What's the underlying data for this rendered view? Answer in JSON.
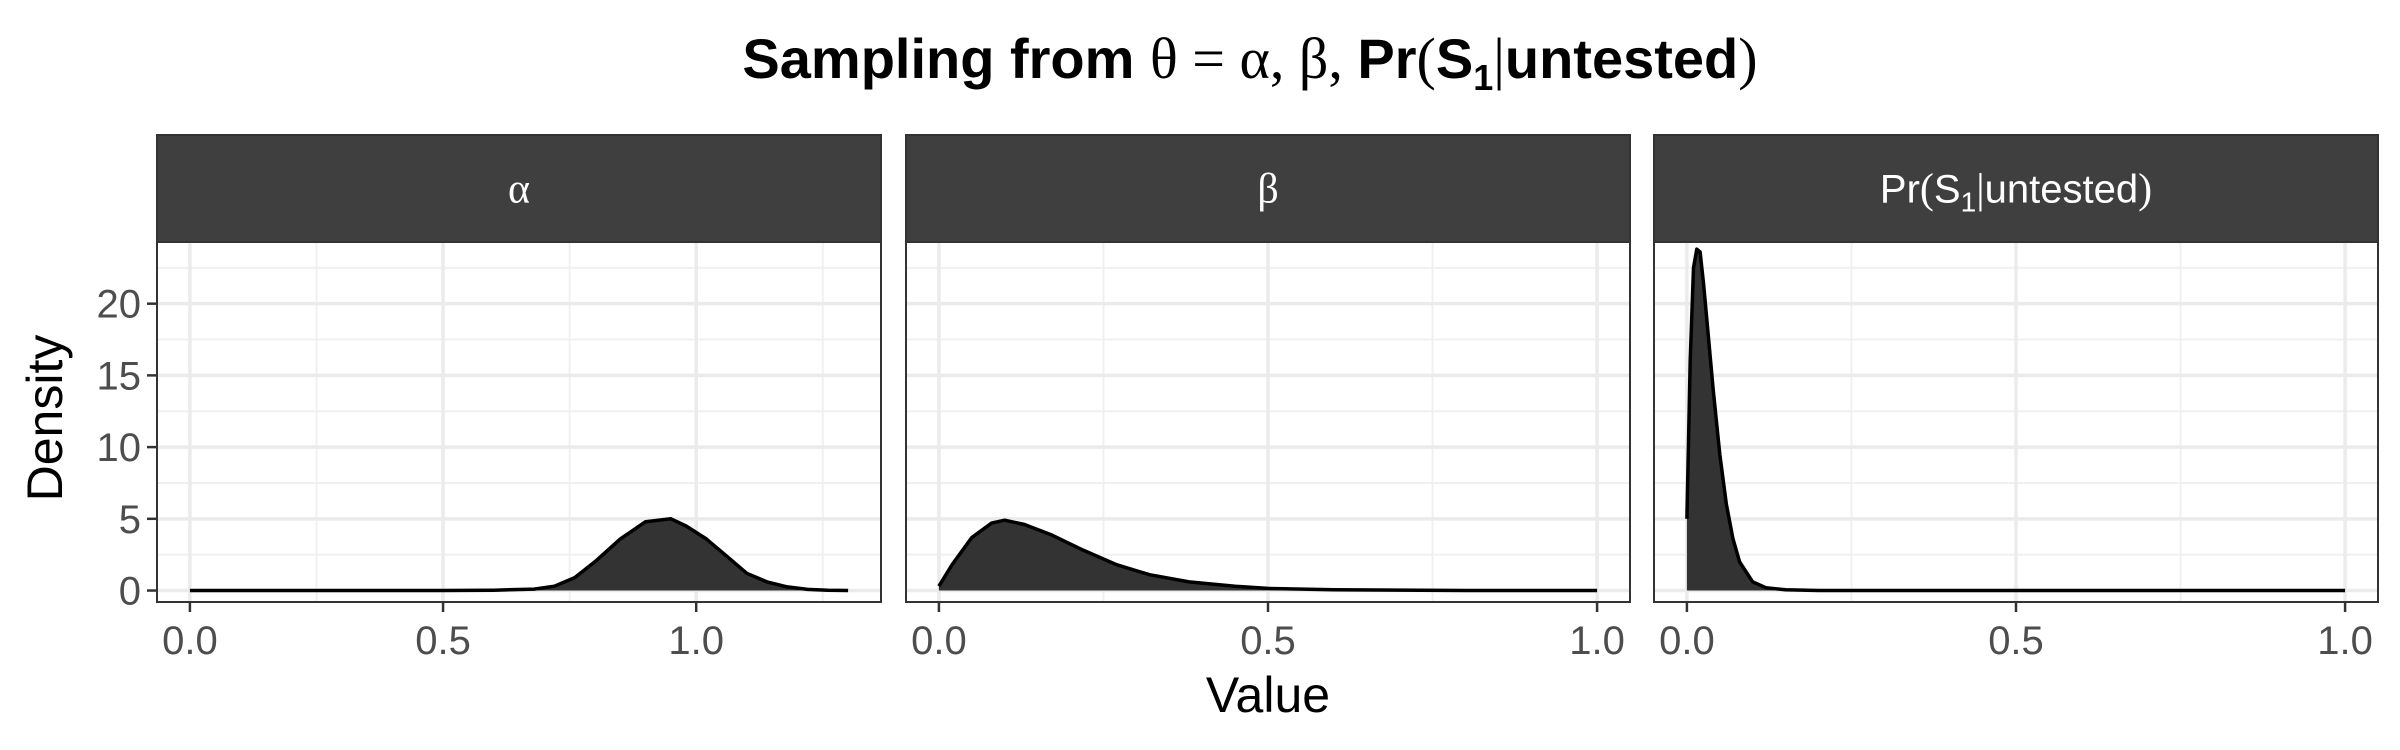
{
  "chart_data": {
    "type": "area",
    "title": {
      "prefix": "Sampling from ",
      "theta_expr": "θ = α, β, ",
      "pr_start": "Pr",
      "s": "S",
      "sub": "1",
      "untested": "untested"
    },
    "xlabel": "Value",
    "ylabel": "Density",
    "ylim": [
      -0.8,
      24.3
    ],
    "y_ticks": [
      0,
      5,
      10,
      15,
      20
    ],
    "y_tick_labels": [
      "0",
      "5",
      "10",
      "15",
      "20"
    ],
    "grid": true,
    "panels": [
      {
        "id": "alpha",
        "strip": {
          "kind": "greek",
          "text": "α"
        },
        "xlim": [
          -0.065,
          1.365
        ],
        "x_ticks": [
          0,
          0.5,
          1.0
        ],
        "x_tick_labels": [
          "0.0",
          "0.5",
          "1.0"
        ],
        "x": [
          0.0,
          0.5,
          0.6,
          0.68,
          0.72,
          0.76,
          0.8,
          0.85,
          0.9,
          0.95,
          0.98,
          1.02,
          1.06,
          1.1,
          1.14,
          1.18,
          1.22,
          1.26,
          1.3
        ],
        "y": [
          0.0,
          0.0,
          0.02,
          0.1,
          0.3,
          0.9,
          2.0,
          3.6,
          4.8,
          5.0,
          4.5,
          3.6,
          2.4,
          1.2,
          0.6,
          0.25,
          0.08,
          0.02,
          0.0
        ]
      },
      {
        "id": "beta",
        "strip": {
          "kind": "greek",
          "text": "β"
        },
        "xlim": [
          -0.05,
          1.05
        ],
        "x_ticks": [
          0,
          0.5,
          1.0
        ],
        "x_tick_labels": [
          "0.0",
          "0.5",
          "1.0"
        ],
        "x": [
          0.0,
          0.02,
          0.05,
          0.08,
          0.1,
          0.13,
          0.17,
          0.22,
          0.27,
          0.32,
          0.38,
          0.45,
          0.5,
          0.6,
          0.8,
          1.0
        ],
        "y": [
          0.3,
          1.8,
          3.7,
          4.7,
          4.9,
          4.6,
          3.9,
          2.8,
          1.8,
          1.1,
          0.6,
          0.3,
          0.15,
          0.05,
          0.0,
          0.0
        ]
      },
      {
        "id": "pr",
        "strip": {
          "kind": "pr",
          "pr": "Pr",
          "s": "S",
          "sub": "1",
          "untested": "untested"
        },
        "xlim": [
          -0.05,
          1.05
        ],
        "x_ticks": [
          0,
          0.5,
          1.0
        ],
        "x_tick_labels": [
          "0.0",
          "0.5",
          "1.0"
        ],
        "x": [
          0.0,
          0.005,
          0.01,
          0.015,
          0.02,
          0.025,
          0.03,
          0.04,
          0.05,
          0.06,
          0.07,
          0.08,
          0.1,
          0.12,
          0.15,
          0.2,
          0.3,
          1.0
        ],
        "y": [
          5.0,
          16.0,
          22.5,
          23.8,
          23.6,
          21.5,
          19.0,
          14.0,
          9.5,
          6.0,
          3.6,
          2.0,
          0.6,
          0.2,
          0.05,
          0.0,
          0.0,
          0.0
        ]
      }
    ]
  }
}
